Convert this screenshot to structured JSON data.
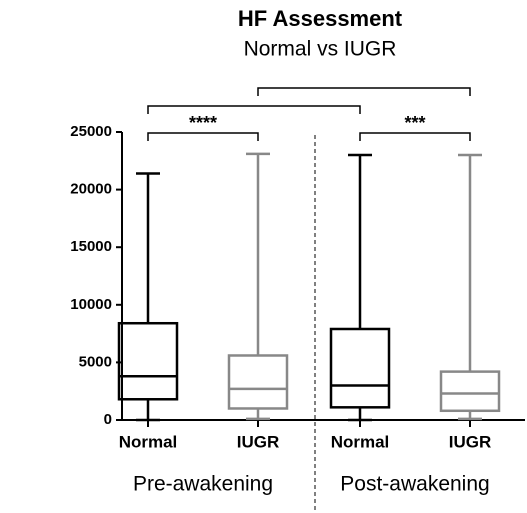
{
  "chart_data": {
    "type": "box",
    "title": "HF Assessment",
    "subtitle": "Normal vs IUGR",
    "categories": [
      "Normal",
      "IUGR",
      "Normal",
      "IUGR"
    ],
    "groups": [
      {
        "name": "Pre-awakening",
        "categories": [
          0,
          1
        ]
      },
      {
        "name": "Post-awakening",
        "categories": [
          2,
          3
        ]
      }
    ],
    "series": [
      {
        "color": "#000000",
        "min": 0,
        "q1": 1800,
        "median": 3800,
        "q3": 8400,
        "max": 21400
      },
      {
        "color": "#888888",
        "min": 100,
        "q1": 1000,
        "median": 2700,
        "q3": 5600,
        "max": 23100
      },
      {
        "color": "#000000",
        "min": 0,
        "q1": 1100,
        "median": 3000,
        "q3": 7900,
        "max": 23000
      },
      {
        "color": "#888888",
        "min": 100,
        "q1": 800,
        "median": 2300,
        "q3": 4200,
        "max": 23000
      }
    ],
    "comparisons": [
      {
        "from": 0,
        "to": 1,
        "label": "****"
      },
      {
        "from": 2,
        "to": 3,
        "label": "***"
      },
      {
        "from": 0,
        "to": 2
      },
      {
        "from": 1,
        "to": 3
      }
    ],
    "ylim": [
      0,
      25000
    ],
    "yticks": [
      0,
      5000,
      10000,
      15000,
      20000,
      25000
    ]
  }
}
